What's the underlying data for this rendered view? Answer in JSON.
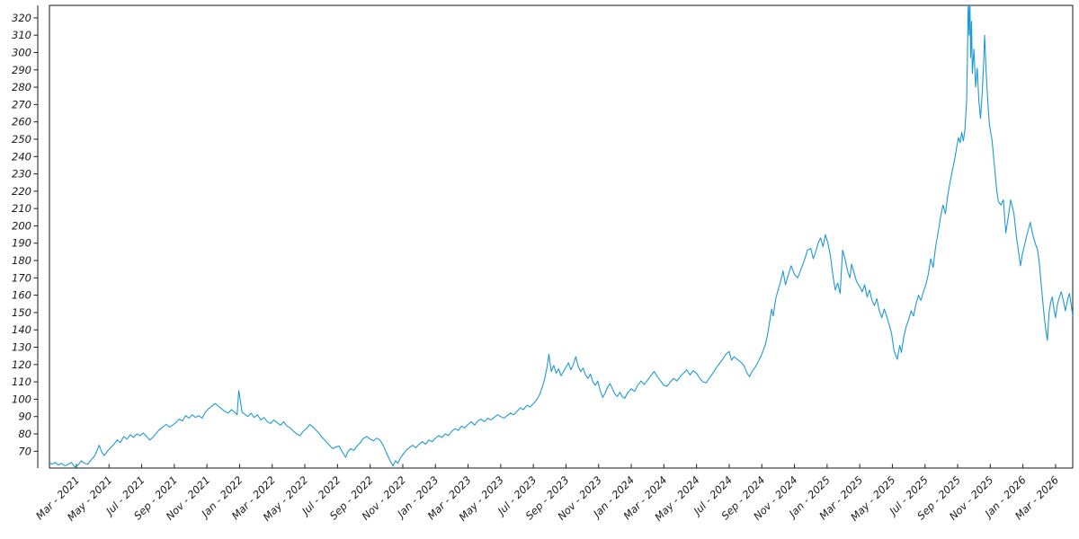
{
  "chart_data": {
    "type": "line",
    "title": "",
    "xlabel": "",
    "ylabel": "",
    "grid": false,
    "legend_position": "none",
    "line_color": "#1e9ad6",
    "axis_color": "#1a1a1a",
    "background_color": "#ffffff",
    "x_unit": "months since Jan 2021 (fractional), Mar 2021 = 2",
    "xlim": [
      0.35,
      63.05
    ],
    "ylim": [
      60.3,
      327.2
    ],
    "y_ticks": [
      70,
      80,
      90,
      100,
      110,
      120,
      130,
      140,
      150,
      160,
      170,
      180,
      190,
      200,
      210,
      220,
      230,
      240,
      250,
      260,
      270,
      280,
      290,
      300,
      310,
      320
    ],
    "x_tick_labels": [
      "Mar - 2021",
      "May - 2021",
      "Jul - 2021",
      "Sep - 2021",
      "Nov - 2021",
      "Jan - 2022",
      "Mar - 2022",
      "May - 2022",
      "Jul - 2022",
      "Sep - 2022",
      "Nov - 2022",
      "Jan - 2023",
      "Mar - 2023",
      "May - 2023",
      "Jul - 2023",
      "Sep - 2023",
      "Nov - 2023",
      "Jan - 2024",
      "Mar - 2024",
      "May - 2024",
      "Jul - 2024",
      "Sep - 2024",
      "Nov - 2024",
      "Jan - 2025",
      "Mar - 2025",
      "May - 2025",
      "Jul - 2025",
      "Sep - 2025",
      "Nov - 2025",
      "Jan - 2026",
      "Mar - 2026"
    ],
    "x_tick_month_start": 2,
    "x_tick_month_step": 2,
    "points": [
      [
        0.35,
        63.5
      ],
      [
        0.5,
        62.5
      ],
      [
        0.7,
        63.5
      ],
      [
        0.9,
        62
      ],
      [
        1.1,
        63
      ],
      [
        1.3,
        61.5
      ],
      [
        1.5,
        62.5
      ],
      [
        1.7,
        63.5
      ],
      [
        1.9,
        61
      ],
      [
        2.1,
        62
      ],
      [
        2.3,
        64.5
      ],
      [
        2.5,
        63
      ],
      [
        2.7,
        62.5
      ],
      [
        2.9,
        65
      ],
      [
        3.1,
        67
      ],
      [
        3.25,
        70
      ],
      [
        3.4,
        73.5
      ],
      [
        3.55,
        69.5
      ],
      [
        3.7,
        67.5
      ],
      [
        3.9,
        70
      ],
      [
        4.1,
        72
      ],
      [
        4.3,
        74
      ],
      [
        4.5,
        76.5
      ],
      [
        4.7,
        75
      ],
      [
        4.9,
        78.5
      ],
      [
        5.1,
        77
      ],
      [
        5.3,
        79.5
      ],
      [
        5.5,
        78
      ],
      [
        5.7,
        80
      ],
      [
        5.9,
        79
      ],
      [
        6.1,
        80.5
      ],
      [
        6.3,
        78.5
      ],
      [
        6.5,
        76.5
      ],
      [
        6.7,
        78
      ],
      [
        6.9,
        80.5
      ],
      [
        7.1,
        82.5
      ],
      [
        7.3,
        84
      ],
      [
        7.5,
        85.5
      ],
      [
        7.7,
        84
      ],
      [
        7.9,
        85
      ],
      [
        8.1,
        86.5
      ],
      [
        8.3,
        88.5
      ],
      [
        8.5,
        87.5
      ],
      [
        8.7,
        90.5
      ],
      [
        8.9,
        89
      ],
      [
        9.1,
        91
      ],
      [
        9.3,
        89.5
      ],
      [
        9.5,
        90.5
      ],
      [
        9.7,
        89
      ],
      [
        9.9,
        92.5
      ],
      [
        10.1,
        94.5
      ],
      [
        10.3,
        96
      ],
      [
        10.5,
        97.5
      ],
      [
        10.7,
        96
      ],
      [
        10.9,
        94.5
      ],
      [
        11.1,
        93
      ],
      [
        11.3,
        92
      ],
      [
        11.5,
        94
      ],
      [
        11.7,
        92.5
      ],
      [
        11.85,
        91
      ],
      [
        11.95,
        105
      ],
      [
        12.05,
        99
      ],
      [
        12.15,
        92.5
      ],
      [
        12.3,
        91.5
      ],
      [
        12.5,
        90
      ],
      [
        12.7,
        92
      ],
      [
        12.9,
        89.5
      ],
      [
        13.1,
        91
      ],
      [
        13.3,
        88
      ],
      [
        13.5,
        89.5
      ],
      [
        13.7,
        87
      ],
      [
        13.9,
        86
      ],
      [
        14.1,
        88
      ],
      [
        14.3,
        86.5
      ],
      [
        14.5,
        85
      ],
      [
        14.7,
        87
      ],
      [
        14.9,
        84.5
      ],
      [
        15.1,
        83.5
      ],
      [
        15.3,
        81.5
      ],
      [
        15.5,
        80
      ],
      [
        15.7,
        79
      ],
      [
        15.9,
        81.5
      ],
      [
        16.1,
        83
      ],
      [
        16.3,
        85.5
      ],
      [
        16.5,
        84
      ],
      [
        16.7,
        82
      ],
      [
        16.9,
        80
      ],
      [
        17.1,
        77.5
      ],
      [
        17.3,
        75.5
      ],
      [
        17.5,
        73.5
      ],
      [
        17.7,
        71.5
      ],
      [
        17.9,
        72.5
      ],
      [
        18.1,
        73
      ],
      [
        18.3,
        69.5
      ],
      [
        18.5,
        66.5
      ],
      [
        18.65,
        70
      ],
      [
        18.8,
        71.5
      ],
      [
        19,
        70.5
      ],
      [
        19.2,
        73
      ],
      [
        19.4,
        75
      ],
      [
        19.6,
        77.5
      ],
      [
        19.8,
        78.5
      ],
      [
        20,
        77
      ],
      [
        20.2,
        76
      ],
      [
        20.4,
        77.5
      ],
      [
        20.6,
        76.5
      ],
      [
        20.8,
        73.5
      ],
      [
        21,
        69
      ],
      [
        21.2,
        65
      ],
      [
        21.4,
        61.5
      ],
      [
        21.55,
        64.5
      ],
      [
        21.7,
        63
      ],
      [
        21.85,
        66
      ],
      [
        22,
        68
      ],
      [
        22.2,
        70.5
      ],
      [
        22.4,
        72
      ],
      [
        22.6,
        73.5
      ],
      [
        22.8,
        72
      ],
      [
        23,
        74
      ],
      [
        23.2,
        75.5
      ],
      [
        23.4,
        74
      ],
      [
        23.6,
        76.5
      ],
      [
        23.8,
        75.5
      ],
      [
        24,
        77.5
      ],
      [
        24.2,
        79
      ],
      [
        24.4,
        78
      ],
      [
        24.6,
        80
      ],
      [
        24.8,
        79
      ],
      [
        25,
        81.5
      ],
      [
        25.2,
        83
      ],
      [
        25.4,
        82
      ],
      [
        25.6,
        84.5
      ],
      [
        25.8,
        83.5
      ],
      [
        26,
        85.5
      ],
      [
        26.2,
        87
      ],
      [
        26.4,
        85
      ],
      [
        26.6,
        87.5
      ],
      [
        26.8,
        88.5
      ],
      [
        27,
        87
      ],
      [
        27.2,
        89
      ],
      [
        27.4,
        88
      ],
      [
        27.6,
        89.5
      ],
      [
        27.8,
        91
      ],
      [
        28,
        90
      ],
      [
        28.2,
        89
      ],
      [
        28.4,
        90.5
      ],
      [
        28.6,
        92
      ],
      [
        28.8,
        91
      ],
      [
        29,
        93
      ],
      [
        29.2,
        95
      ],
      [
        29.4,
        94
      ],
      [
        29.6,
        96.5
      ],
      [
        29.8,
        95.5
      ],
      [
        30,
        97.5
      ],
      [
        30.2,
        99.5
      ],
      [
        30.4,
        103
      ],
      [
        30.55,
        107
      ],
      [
        30.7,
        112
      ],
      [
        30.85,
        119
      ],
      [
        30.95,
        126
      ],
      [
        31.1,
        116
      ],
      [
        31.25,
        119.5
      ],
      [
        31.4,
        115
      ],
      [
        31.55,
        117.5
      ],
      [
        31.7,
        113.5
      ],
      [
        31.85,
        116
      ],
      [
        32,
        118.5
      ],
      [
        32.15,
        121
      ],
      [
        32.3,
        117
      ],
      [
        32.45,
        120
      ],
      [
        32.6,
        124.5
      ],
      [
        32.75,
        119
      ],
      [
        32.9,
        116
      ],
      [
        33.05,
        118
      ],
      [
        33.2,
        114
      ],
      [
        33.35,
        112
      ],
      [
        33.5,
        114.5
      ],
      [
        33.65,
        110
      ],
      [
        33.8,
        108
      ],
      [
        33.95,
        110.5
      ],
      [
        34.1,
        105
      ],
      [
        34.25,
        101
      ],
      [
        34.4,
        103.5
      ],
      [
        34.55,
        107
      ],
      [
        34.7,
        109
      ],
      [
        34.85,
        106
      ],
      [
        35,
        103
      ],
      [
        35.15,
        101.5
      ],
      [
        35.3,
        104
      ],
      [
        35.45,
        101.5
      ],
      [
        35.6,
        100.5
      ],
      [
        35.8,
        104
      ],
      [
        36,
        106
      ],
      [
        36.2,
        104.5
      ],
      [
        36.4,
        108
      ],
      [
        36.6,
        110.5
      ],
      [
        36.8,
        108.5
      ],
      [
        37,
        111
      ],
      [
        37.2,
        113.5
      ],
      [
        37.4,
        116
      ],
      [
        37.6,
        113
      ],
      [
        37.8,
        110.5
      ],
      [
        38,
        108
      ],
      [
        38.2,
        107.5
      ],
      [
        38.4,
        110
      ],
      [
        38.6,
        112
      ],
      [
        38.8,
        110.5
      ],
      [
        39,
        113
      ],
      [
        39.2,
        115
      ],
      [
        39.4,
        117
      ],
      [
        39.6,
        114
      ],
      [
        39.8,
        116.5
      ],
      [
        40,
        115
      ],
      [
        40.2,
        112
      ],
      [
        40.4,
        110
      ],
      [
        40.6,
        109.5
      ],
      [
        40.8,
        112.5
      ],
      [
        41,
        115
      ],
      [
        41.2,
        118
      ],
      [
        41.4,
        120.5
      ],
      [
        41.6,
        123
      ],
      [
        41.8,
        126
      ],
      [
        42,
        127.5
      ],
      [
        42.15,
        122.5
      ],
      [
        42.3,
        124.5
      ],
      [
        42.5,
        123
      ],
      [
        42.7,
        121.5
      ],
      [
        42.9,
        119.5
      ],
      [
        43.1,
        115
      ],
      [
        43.25,
        113
      ],
      [
        43.4,
        116
      ],
      [
        43.6,
        118.5
      ],
      [
        43.8,
        122
      ],
      [
        44,
        126
      ],
      [
        44.2,
        131
      ],
      [
        44.35,
        137
      ],
      [
        44.5,
        146
      ],
      [
        44.6,
        152
      ],
      [
        44.7,
        148
      ],
      [
        44.85,
        158
      ],
      [
        45,
        163
      ],
      [
        45.15,
        168
      ],
      [
        45.3,
        174
      ],
      [
        45.45,
        166
      ],
      [
        45.6,
        171
      ],
      [
        45.8,
        177
      ],
      [
        46,
        172
      ],
      [
        46.2,
        170
      ],
      [
        46.4,
        175
      ],
      [
        46.6,
        180
      ],
      [
        46.8,
        186
      ],
      [
        47,
        187
      ],
      [
        47.15,
        181
      ],
      [
        47.3,
        185
      ],
      [
        47.45,
        190
      ],
      [
        47.6,
        193
      ],
      [
        47.75,
        188
      ],
      [
        47.9,
        195
      ],
      [
        48.05,
        190
      ],
      [
        48.2,
        183
      ],
      [
        48.35,
        172
      ],
      [
        48.5,
        163
      ],
      [
        48.65,
        167
      ],
      [
        48.8,
        161
      ],
      [
        48.95,
        186
      ],
      [
        49.1,
        181
      ],
      [
        49.25,
        174
      ],
      [
        49.4,
        170
      ],
      [
        49.5,
        178
      ],
      [
        49.65,
        173
      ],
      [
        49.8,
        168
      ],
      [
        50,
        165
      ],
      [
        50.15,
        162
      ],
      [
        50.3,
        166
      ],
      [
        50.45,
        159
      ],
      [
        50.6,
        163
      ],
      [
        50.75,
        157
      ],
      [
        50.9,
        154
      ],
      [
        51.05,
        158
      ],
      [
        51.2,
        151
      ],
      [
        51.35,
        147
      ],
      [
        51.5,
        152
      ],
      [
        51.65,
        148
      ],
      [
        51.8,
        143
      ],
      [
        51.95,
        138
      ],
      [
        52.1,
        128
      ],
      [
        52.3,
        123
      ],
      [
        52.45,
        131
      ],
      [
        52.55,
        127
      ],
      [
        52.7,
        136
      ],
      [
        52.85,
        142
      ],
      [
        53,
        146
      ],
      [
        53.15,
        151
      ],
      [
        53.3,
        148
      ],
      [
        53.45,
        155
      ],
      [
        53.6,
        160
      ],
      [
        53.75,
        157
      ],
      [
        53.9,
        162
      ],
      [
        54.05,
        166
      ],
      [
        54.2,
        172
      ],
      [
        54.35,
        181
      ],
      [
        54.5,
        176
      ],
      [
        54.65,
        188
      ],
      [
        54.8,
        196
      ],
      [
        54.95,
        205
      ],
      [
        55.1,
        212
      ],
      [
        55.25,
        207
      ],
      [
        55.4,
        218
      ],
      [
        55.55,
        226
      ],
      [
        55.7,
        233
      ],
      [
        55.85,
        240
      ],
      [
        55.95,
        246
      ],
      [
        56.05,
        251
      ],
      [
        56.15,
        248
      ],
      [
        56.25,
        254
      ],
      [
        56.35,
        249
      ],
      [
        56.45,
        256
      ],
      [
        56.55,
        272
      ],
      [
        56.6,
        298
      ],
      [
        56.65,
        332
      ],
      [
        56.7,
        310
      ],
      [
        56.75,
        331
      ],
      [
        56.8,
        297
      ],
      [
        56.85,
        318
      ],
      [
        56.9,
        288
      ],
      [
        57,
        302
      ],
      [
        57.1,
        280
      ],
      [
        57.2,
        291
      ],
      [
        57.3,
        272
      ],
      [
        57.4,
        262
      ],
      [
        57.5,
        276
      ],
      [
        57.6,
        295
      ],
      [
        57.65,
        310
      ],
      [
        57.75,
        288
      ],
      [
        57.85,
        271
      ],
      [
        57.95,
        258
      ],
      [
        58.1,
        250
      ],
      [
        58.2,
        240
      ],
      [
        58.3,
        230
      ],
      [
        58.4,
        220
      ],
      [
        58.5,
        214
      ],
      [
        58.65,
        212
      ],
      [
        58.8,
        215
      ],
      [
        58.95,
        196
      ],
      [
        59.1,
        205
      ],
      [
        59.25,
        215
      ],
      [
        59.45,
        207
      ],
      [
        59.6,
        194
      ],
      [
        59.85,
        177
      ],
      [
        59.95,
        183
      ],
      [
        60.1,
        189
      ],
      [
        60.25,
        195
      ],
      [
        60.45,
        202
      ],
      [
        60.6,
        195
      ],
      [
        60.75,
        190
      ],
      [
        60.9,
        186
      ],
      [
        61,
        179
      ],
      [
        61.15,
        163
      ],
      [
        61.3,
        148
      ],
      [
        61.4,
        140
      ],
      [
        61.5,
        134
      ],
      [
        61.6,
        150
      ],
      [
        61.7,
        156
      ],
      [
        61.8,
        159
      ],
      [
        61.9,
        152
      ],
      [
        62,
        147
      ],
      [
        62.1,
        154
      ],
      [
        62.2,
        158
      ],
      [
        62.35,
        162
      ],
      [
        62.5,
        156
      ],
      [
        62.6,
        151
      ],
      [
        62.75,
        158
      ],
      [
        62.85,
        161
      ],
      [
        62.95,
        155
      ],
      [
        63.05,
        148
      ]
    ]
  }
}
